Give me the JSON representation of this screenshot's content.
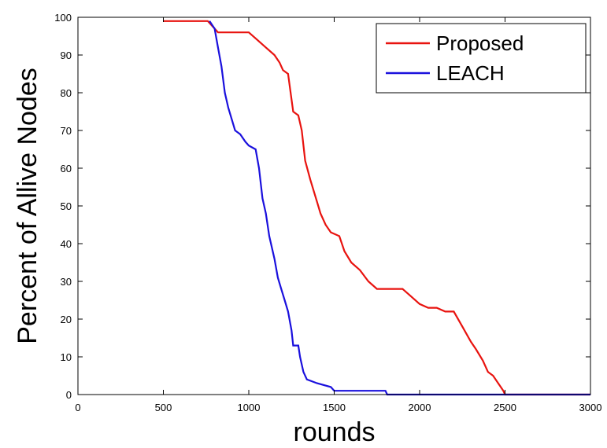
{
  "chart_data": {
    "type": "line",
    "title": "",
    "xlabel": "rounds",
    "ylabel": "Percent of Allive Nodes",
    "xlim": [
      0,
      3000
    ],
    "ylim": [
      0,
      100
    ],
    "xticks": [
      0,
      500,
      1000,
      1500,
      2000,
      2500,
      3000
    ],
    "yticks": [
      0,
      10,
      20,
      30,
      40,
      50,
      60,
      70,
      80,
      90,
      100
    ],
    "grid": false,
    "legend_position": "top-right",
    "series": [
      {
        "name": "Proposed",
        "color": "#e8130f",
        "points": [
          [
            500,
            99
          ],
          [
            760,
            99
          ],
          [
            800,
            97
          ],
          [
            820,
            96
          ],
          [
            1000,
            96
          ],
          [
            1050,
            94
          ],
          [
            1100,
            92
          ],
          [
            1150,
            90
          ],
          [
            1180,
            88
          ],
          [
            1200,
            86
          ],
          [
            1230,
            85
          ],
          [
            1260,
            75
          ],
          [
            1290,
            74
          ],
          [
            1310,
            70
          ],
          [
            1330,
            62
          ],
          [
            1360,
            57
          ],
          [
            1400,
            51
          ],
          [
            1420,
            48
          ],
          [
            1450,
            45
          ],
          [
            1480,
            43
          ],
          [
            1530,
            42
          ],
          [
            1560,
            38
          ],
          [
            1600,
            35
          ],
          [
            1650,
            33
          ],
          [
            1700,
            30
          ],
          [
            1750,
            28
          ],
          [
            1900,
            28
          ],
          [
            1950,
            26
          ],
          [
            2000,
            24
          ],
          [
            2050,
            23
          ],
          [
            2100,
            23
          ],
          [
            2150,
            22
          ],
          [
            2200,
            22
          ],
          [
            2250,
            18
          ],
          [
            2300,
            14
          ],
          [
            2330,
            12
          ],
          [
            2370,
            9
          ],
          [
            2400,
            6
          ],
          [
            2430,
            5
          ],
          [
            2460,
            3
          ],
          [
            2490,
            1
          ],
          [
            2500,
            0
          ],
          [
            3000,
            0
          ]
        ]
      },
      {
        "name": "LEACH",
        "color": "#1a10dd",
        "points": [
          [
            770,
            99
          ],
          [
            800,
            97
          ],
          [
            820,
            92
          ],
          [
            840,
            87
          ],
          [
            860,
            80
          ],
          [
            880,
            76
          ],
          [
            900,
            73
          ],
          [
            920,
            70
          ],
          [
            950,
            69
          ],
          [
            980,
            67
          ],
          [
            1000,
            66
          ],
          [
            1040,
            65
          ],
          [
            1060,
            60
          ],
          [
            1080,
            52
          ],
          [
            1100,
            48
          ],
          [
            1120,
            42
          ],
          [
            1150,
            36
          ],
          [
            1170,
            31
          ],
          [
            1190,
            28
          ],
          [
            1210,
            25
          ],
          [
            1230,
            22
          ],
          [
            1250,
            17
          ],
          [
            1260,
            13
          ],
          [
            1290,
            13
          ],
          [
            1300,
            10
          ],
          [
            1320,
            6
          ],
          [
            1340,
            4
          ],
          [
            1400,
            3
          ],
          [
            1480,
            2
          ],
          [
            1500,
            1
          ],
          [
            1800,
            1
          ],
          [
            1810,
            0
          ],
          [
            3000,
            0
          ]
        ]
      }
    ]
  }
}
